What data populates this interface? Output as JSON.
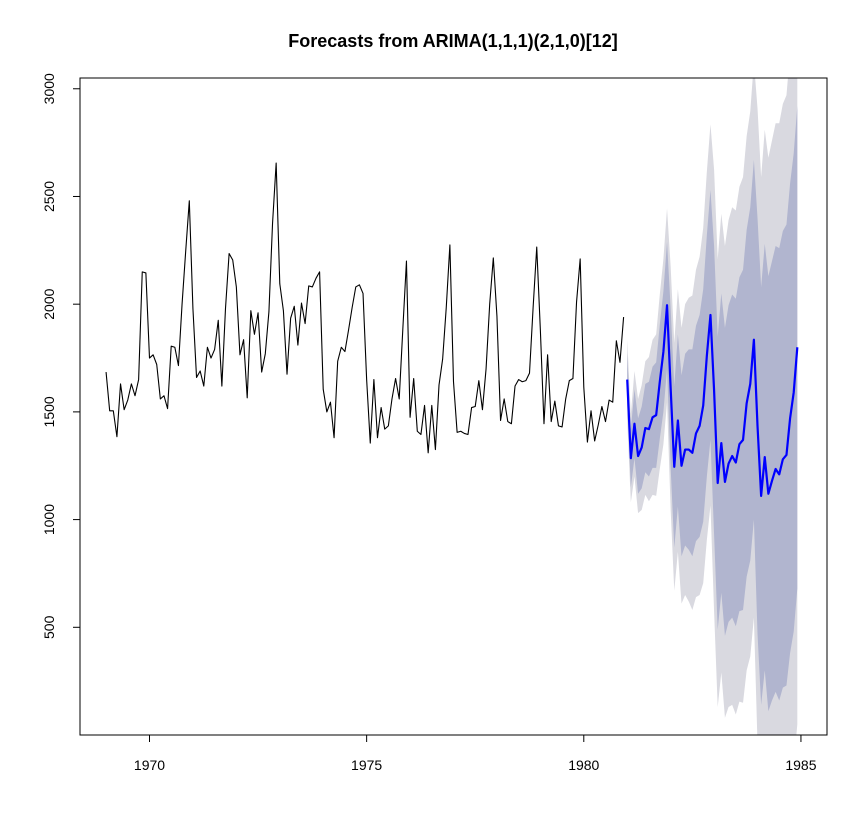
{
  "chart_data": {
    "type": "line",
    "title": "Forecasts from ARIMA(1,1,1)(2,1,0)[12]",
    "xlabel": "",
    "ylabel": "",
    "xlim": [
      1968.4,
      1985.6
    ],
    "ylim": [
      0,
      3050
    ],
    "x_ticks": [
      1970,
      1975,
      1980,
      1985
    ],
    "y_ticks": [
      500,
      1000,
      1500,
      2000,
      2500,
      3000
    ],
    "grid": false,
    "colors": {
      "history": "#000000",
      "forecast": "#0000ff",
      "band80": "#b1b5cf",
      "band95": "#d9d9e0"
    },
    "history": {
      "start": 1969.0,
      "frequency": 12,
      "values": [
        1685,
        1505,
        1505,
        1385,
        1630,
        1510,
        1555,
        1630,
        1575,
        1650,
        2150,
        2145,
        1750,
        1765,
        1720,
        1560,
        1575,
        1515,
        1805,
        1800,
        1715,
        2000,
        2245,
        2480,
        1980,
        1660,
        1690,
        1620,
        1800,
        1750,
        1790,
        1925,
        1620,
        1980,
        2235,
        2205,
        2080,
        1765,
        1835,
        1565,
        1970,
        1860,
        1960,
        1685,
        1770,
        1965,
        2375,
        2655,
        2095,
        1970,
        1675,
        1935,
        1990,
        1810,
        2005,
        1910,
        2085,
        2080,
        2120,
        2150,
        1605,
        1500,
        1545,
        1380,
        1735,
        1800,
        1780,
        1880,
        1985,
        2080,
        2090,
        2050,
        1650,
        1355,
        1650,
        1380,
        1520,
        1420,
        1435,
        1560,
        1655,
        1560,
        1885,
        2200,
        1475,
        1655,
        1410,
        1395,
        1530,
        1310,
        1530,
        1325,
        1625,
        1745,
        1985,
        2275,
        1640,
        1405,
        1410,
        1400,
        1395,
        1520,
        1525,
        1645,
        1510,
        1700,
        2000,
        2215,
        1945,
        1460,
        1560,
        1455,
        1445,
        1620,
        1650,
        1640,
        1645,
        1680,
        1985,
        2265,
        1880,
        1445,
        1765,
        1455,
        1550,
        1435,
        1430,
        1560,
        1645,
        1655,
        2010,
        2210,
        1615,
        1360,
        1505,
        1365,
        1440,
        1525,
        1455,
        1555,
        1545,
        1830,
        1730,
        1940
      ]
    },
    "forecast": {
      "start": 1981.0,
      "frequency": 12,
      "mean": [
        1650,
        1285,
        1445,
        1295,
        1335,
        1425,
        1420,
        1475,
        1485,
        1640,
        1780,
        1995,
        1610,
        1245,
        1460,
        1250,
        1325,
        1325,
        1310,
        1400,
        1435,
        1530,
        1760,
        1950,
        1600,
        1170,
        1355,
        1175,
        1260,
        1295,
        1265,
        1350,
        1370,
        1540,
        1630,
        1835,
        1435,
        1110,
        1290,
        1120,
        1180,
        1235,
        1210,
        1280,
        1300,
        1470,
        1590,
        1800
      ],
      "lo80": [
        1530,
        1150,
        1285,
        1120,
        1145,
        1220,
        1200,
        1240,
        1240,
        1375,
        1500,
        1700,
        1240,
        870,
        1060,
        830,
        880,
        860,
        830,
        900,
        920,
        990,
        1200,
        1370,
        930,
        490,
        660,
        460,
        525,
        545,
        505,
        575,
        580,
        735,
        810,
        1000,
        470,
        140,
        300,
        110,
        160,
        200,
        160,
        220,
        230,
        380,
        480,
        680
      ],
      "hi80": [
        1770,
        1420,
        1605,
        1470,
        1525,
        1630,
        1640,
        1710,
        1730,
        1905,
        2060,
        2290,
        1980,
        1620,
        1860,
        1670,
        1770,
        1790,
        1790,
        1900,
        1950,
        2070,
        2320,
        2530,
        2270,
        1850,
        2050,
        1890,
        1995,
        2045,
        2025,
        2125,
        2160,
        2345,
        2450,
        2670,
        2400,
        2080,
        2280,
        2130,
        2200,
        2270,
        2260,
        2340,
        2370,
        2560,
        2700,
        2920
      ],
      "lo95": [
        1465,
        1080,
        1200,
        1030,
        1045,
        1115,
        1085,
        1115,
        1110,
        1235,
        1350,
        1545,
        1045,
        670,
        850,
        610,
        650,
        620,
        580,
        640,
        650,
        705,
        905,
        1065,
        575,
        130,
        290,
        80,
        130,
        140,
        95,
        155,
        150,
        300,
        365,
        545,
        -40,
        -370,
        -230,
        -440,
        -400,
        -370,
        -420,
        -370,
        -370,
        -230,
        -140,
        50
      ],
      "hi95": [
        1835,
        1490,
        1690,
        1560,
        1625,
        1735,
        1755,
        1835,
        1860,
        2045,
        2210,
        2445,
        2175,
        1820,
        2070,
        1890,
        2000,
        2030,
        2040,
        2160,
        2220,
        2355,
        2615,
        2835,
        2625,
        2210,
        2420,
        2270,
        2390,
        2450,
        2435,
        2545,
        2590,
        2780,
        2895,
        3125,
        2910,
        2590,
        2810,
        2680,
        2760,
        2840,
        2840,
        2930,
        2970,
        3170,
        3320,
        3550
      ]
    }
  }
}
